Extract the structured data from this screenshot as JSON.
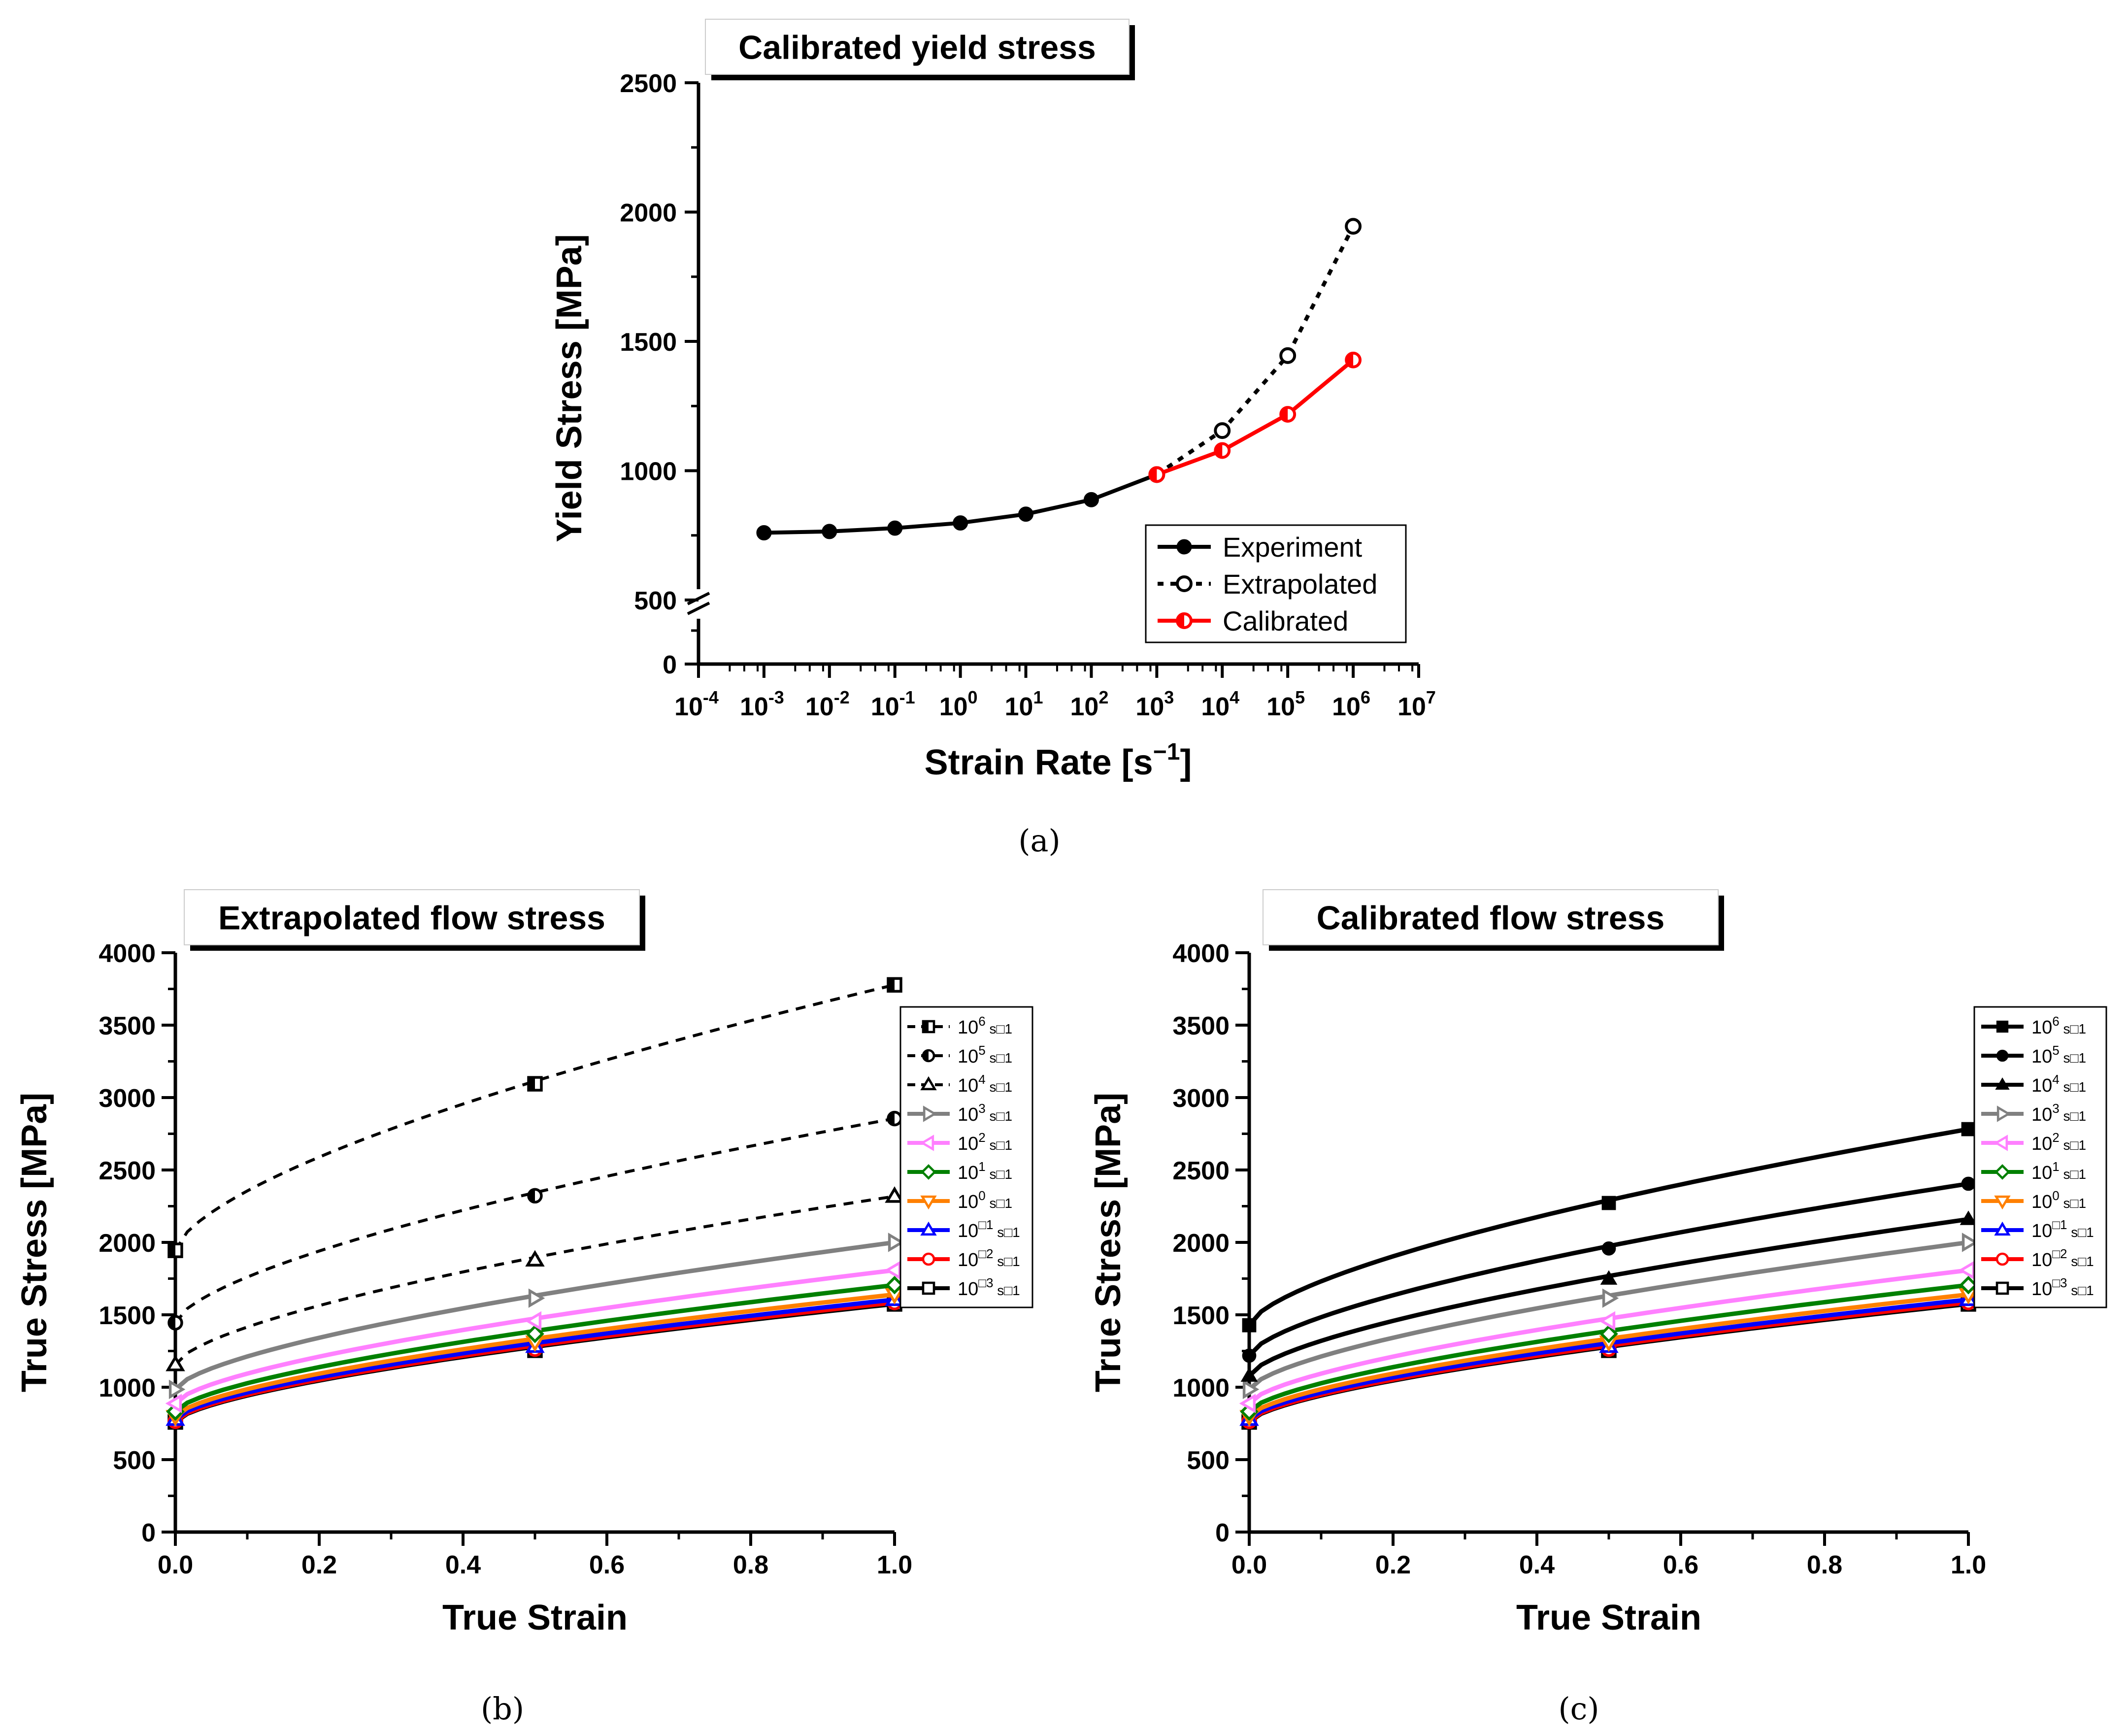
{
  "figure": {
    "captions": [
      "(a)",
      "(b)",
      "(c)"
    ]
  },
  "chart_data": [
    {
      "id": "a",
      "type": "line",
      "title": "Calibrated yield stress",
      "xlabel": "Strain Rate [s",
      "xlabel_sup": "−1",
      "xlabel_end": "]",
      "ylabel": "Yield Stress [MPa]",
      "xscale": "log",
      "xlim": [
        0.0001,
        10000000
      ],
      "xtick_exponents": [
        "-4",
        "-3",
        "-2",
        "-1",
        "0",
        "1",
        "2",
        "3",
        "4",
        "5",
        "6",
        "7"
      ],
      "ylim": [
        0,
        2500
      ],
      "y_axis_break": [
        0,
        500
      ],
      "yticks": [
        "0",
        "500",
        "1000",
        "1500",
        "2000",
        "2500"
      ],
      "legend_position": "bottom-right",
      "series": [
        {
          "name": "Experiment",
          "marker": "filled-circle",
          "line": "solid",
          "color": "#000000",
          "x": [
            0.001,
            0.01,
            0.1,
            1,
            10,
            100,
            1000
          ],
          "y": [
            760,
            765,
            778,
            798,
            832,
            888,
            985
          ]
        },
        {
          "name": "Extrapolated",
          "marker": "open-circle",
          "line": "dotted",
          "color": "#000000",
          "x": [
            1000,
            10000,
            100000,
            1000000
          ],
          "y": [
            985,
            1155,
            1445,
            1945
          ]
        },
        {
          "name": "Calibrated",
          "marker": "half-circle",
          "line": "solid",
          "color": "#ff0000",
          "x": [
            1000,
            10000,
            100000,
            1000000
          ],
          "y": [
            985,
            1078,
            1218,
            1428
          ]
        }
      ]
    },
    {
      "id": "b",
      "type": "line",
      "title": "Extrapolated flow stress",
      "xlabel": "True Strain",
      "ylabel": "True Stress [MPa]",
      "xlim": [
        0,
        1.0
      ],
      "ylim": [
        0,
        4000
      ],
      "xticks": [
        "0.0",
        "0.2",
        "0.4",
        "0.6",
        "0.8",
        "1.0"
      ],
      "yticks": [
        "0",
        "500",
        "1000",
        "1500",
        "2000",
        "2500",
        "3000",
        "3500",
        "4000"
      ],
      "legend_position": "top-right",
      "hardening_exponent": 0.65,
      "series": [
        {
          "name_base": "10",
          "name_exp": "6",
          "name_unit": " s□1",
          "color": "#000000",
          "line": "dashed",
          "marker": "half-square",
          "y0": 1945,
          "y_mid": 3095,
          "y1": 3778
        },
        {
          "name_base": "10",
          "name_exp": "5",
          "name_unit": " s□1",
          "color": "#000000",
          "line": "dashed",
          "marker": "half-circle",
          "y0": 1445,
          "y_mid": 2322,
          "y1": 2855
        },
        {
          "name_base": "10",
          "name_exp": "4",
          "name_unit": " s□1",
          "color": "#000000",
          "line": "dashed",
          "marker": "half-triangle",
          "y0": 1155,
          "y_mid": 1878,
          "y1": 2318
        },
        {
          "name_base": "10",
          "name_exp": "3",
          "name_unit": " s□1",
          "color": "#808080",
          "line": "solid",
          "marker": "open-triangle-right",
          "y0": 985,
          "y_mid": 1615,
          "y1": 2000
        },
        {
          "name_base": "10",
          "name_exp": "2",
          "name_unit": " s□1",
          "color": "#ff80ff",
          "line": "solid",
          "marker": "open-triangle-left",
          "y0": 888,
          "y_mid": 1458,
          "y1": 1808
        },
        {
          "name_base": "10",
          "name_exp": "1",
          "name_unit": " s□1",
          "color": "#008000",
          "line": "solid",
          "marker": "open-diamond",
          "y0": 832,
          "y_mid": 1368,
          "y1": 1705
        },
        {
          "name_base": "10",
          "name_exp": "0",
          "name_unit": " s□1",
          "color": "#ff8000",
          "line": "solid",
          "marker": "open-triangle-down",
          "y0": 798,
          "y_mid": 1312,
          "y1": 1640
        },
        {
          "name_base": "10",
          "name_exp": "□1",
          "name_unit": " s□1",
          "color": "#0000ff",
          "line": "solid",
          "marker": "open-triangle-up",
          "y0": 778,
          "y_mid": 1282,
          "y1": 1605
        },
        {
          "name_base": "10",
          "name_exp": "□2",
          "name_unit": " s□1",
          "color": "#ff0000",
          "line": "solid",
          "marker": "open-circle",
          "y0": 765,
          "y_mid": 1263,
          "y1": 1585
        },
        {
          "name_base": "10",
          "name_exp": "□3",
          "name_unit": " s□1",
          "color": "#000000",
          "line": "solid",
          "marker": "open-square",
          "y0": 760,
          "y_mid": 1255,
          "y1": 1575
        }
      ]
    },
    {
      "id": "c",
      "type": "line",
      "title": "Calibrated flow stress",
      "xlabel": "True Strain",
      "ylabel": "True Stress [MPa]",
      "xlim": [
        0,
        1.0
      ],
      "ylim": [
        0,
        4000
      ],
      "xticks": [
        "0.0",
        "0.2",
        "0.4",
        "0.6",
        "0.8",
        "1.0"
      ],
      "yticks": [
        "0",
        "500",
        "1000",
        "1500",
        "2000",
        "2500",
        "3000",
        "3500",
        "4000"
      ],
      "legend_position": "top-right",
      "hardening_exponent": 0.65,
      "series": [
        {
          "name_base": "10",
          "name_exp": "6",
          "name_unit": " s□1",
          "color": "#000000",
          "line": "solid",
          "marker": "filled-square",
          "y0": 1428,
          "y_mid": 2272,
          "y1": 2782
        },
        {
          "name_base": "10",
          "name_exp": "5",
          "name_unit": " s□1",
          "color": "#000000",
          "line": "solid",
          "marker": "filled-circle",
          "y0": 1218,
          "y_mid": 1958,
          "y1": 2405
        },
        {
          "name_base": "10",
          "name_exp": "4",
          "name_unit": " s□1",
          "color": "#000000",
          "line": "solid",
          "marker": "filled-triangle",
          "y0": 1078,
          "y_mid": 1748,
          "y1": 2160
        },
        {
          "name_base": "10",
          "name_exp": "3",
          "name_unit": " s□1",
          "color": "#808080",
          "line": "solid",
          "marker": "open-triangle-right",
          "y0": 985,
          "y_mid": 1615,
          "y1": 2000
        },
        {
          "name_base": "10",
          "name_exp": "2",
          "name_unit": " s□1",
          "color": "#ff80ff",
          "line": "solid",
          "marker": "open-triangle-left",
          "y0": 888,
          "y_mid": 1458,
          "y1": 1808
        },
        {
          "name_base": "10",
          "name_exp": "1",
          "name_unit": " s□1",
          "color": "#008000",
          "line": "solid",
          "marker": "open-diamond",
          "y0": 832,
          "y_mid": 1368,
          "y1": 1705
        },
        {
          "name_base": "10",
          "name_exp": "0",
          "name_unit": " s□1",
          "color": "#ff8000",
          "line": "solid",
          "marker": "open-triangle-down",
          "y0": 798,
          "y_mid": 1312,
          "y1": 1640
        },
        {
          "name_base": "10",
          "name_exp": "□1",
          "name_unit": " s□1",
          "color": "#0000ff",
          "line": "solid",
          "marker": "open-triangle-up",
          "y0": 778,
          "y_mid": 1282,
          "y1": 1605
        },
        {
          "name_base": "10",
          "name_exp": "□2",
          "name_unit": " s□1",
          "color": "#ff0000",
          "line": "solid",
          "marker": "open-circle",
          "y0": 765,
          "y_mid": 1263,
          "y1": 1585
        },
        {
          "name_base": "10",
          "name_exp": "□3",
          "name_unit": " s□1",
          "color": "#000000",
          "line": "solid",
          "marker": "open-square",
          "y0": 760,
          "y_mid": 1255,
          "y1": 1575
        }
      ]
    }
  ]
}
